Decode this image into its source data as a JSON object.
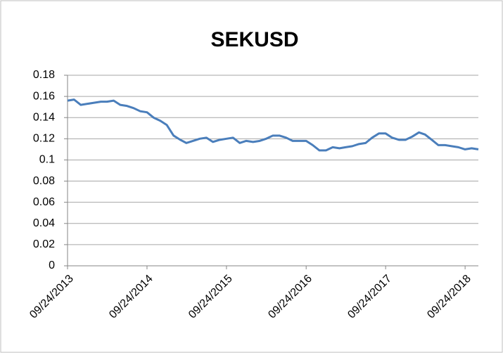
{
  "chart_data": {
    "type": "line",
    "title": "SEKUSD",
    "x": [
      "09/24/2013",
      "10/24/2013",
      "11/24/2013",
      "12/24/2013",
      "01/24/2014",
      "02/24/2014",
      "03/24/2014",
      "04/24/2014",
      "05/24/2014",
      "06/24/2014",
      "07/24/2014",
      "08/24/2014",
      "09/24/2014",
      "10/24/2014",
      "11/24/2014",
      "12/24/2014",
      "01/24/2015",
      "02/24/2015",
      "03/24/2015",
      "04/24/2015",
      "05/24/2015",
      "06/24/2015",
      "07/24/2015",
      "08/24/2015",
      "09/24/2015",
      "10/24/2015",
      "11/24/2015",
      "12/24/2015",
      "01/24/2016",
      "02/24/2016",
      "03/24/2016",
      "04/24/2016",
      "05/24/2016",
      "06/24/2016",
      "07/24/2016",
      "08/24/2016",
      "09/24/2016",
      "10/24/2016",
      "11/24/2016",
      "12/24/2016",
      "01/24/2017",
      "02/24/2017",
      "03/24/2017",
      "04/24/2017",
      "05/24/2017",
      "06/24/2017",
      "07/24/2017",
      "08/24/2017",
      "09/24/2017",
      "10/24/2017",
      "11/24/2017",
      "12/24/2017",
      "01/24/2018",
      "02/24/2018",
      "03/24/2018",
      "04/24/2018",
      "05/24/2018",
      "06/24/2018",
      "07/24/2018",
      "08/24/2018",
      "09/24/2018",
      "10/24/2018",
      "11/24/2018"
    ],
    "series": [
      {
        "name": "SEKUSD",
        "color": "#4a7ebb",
        "values": [
          0.156,
          0.157,
          0.152,
          0.153,
          0.154,
          0.155,
          0.155,
          0.156,
          0.152,
          0.151,
          0.149,
          0.146,
          0.145,
          0.14,
          0.137,
          0.133,
          0.123,
          0.119,
          0.116,
          0.118,
          0.12,
          0.121,
          0.117,
          0.119,
          0.12,
          0.121,
          0.116,
          0.118,
          0.117,
          0.118,
          0.12,
          0.123,
          0.123,
          0.121,
          0.118,
          0.118,
          0.118,
          0.114,
          0.109,
          0.109,
          0.112,
          0.111,
          0.112,
          0.113,
          0.115,
          0.116,
          0.121,
          0.125,
          0.125,
          0.121,
          0.119,
          0.119,
          0.122,
          0.126,
          0.124,
          0.119,
          0.114,
          0.114,
          0.113,
          0.112,
          0.11,
          0.111,
          0.11
        ]
      }
    ],
    "xlim": [
      "09/24/2013",
      "11/24/2018"
    ],
    "xticks": [
      "09/24/2013",
      "09/24/2014",
      "09/24/2015",
      "09/24/2016",
      "09/24/2017",
      "09/24/2018"
    ],
    "ylim": [
      0,
      0.18
    ],
    "yticks": [
      0,
      0.02,
      0.04,
      0.06,
      0.08,
      0.1,
      0.12,
      0.14,
      0.16,
      0.18
    ],
    "grid": true
  }
}
